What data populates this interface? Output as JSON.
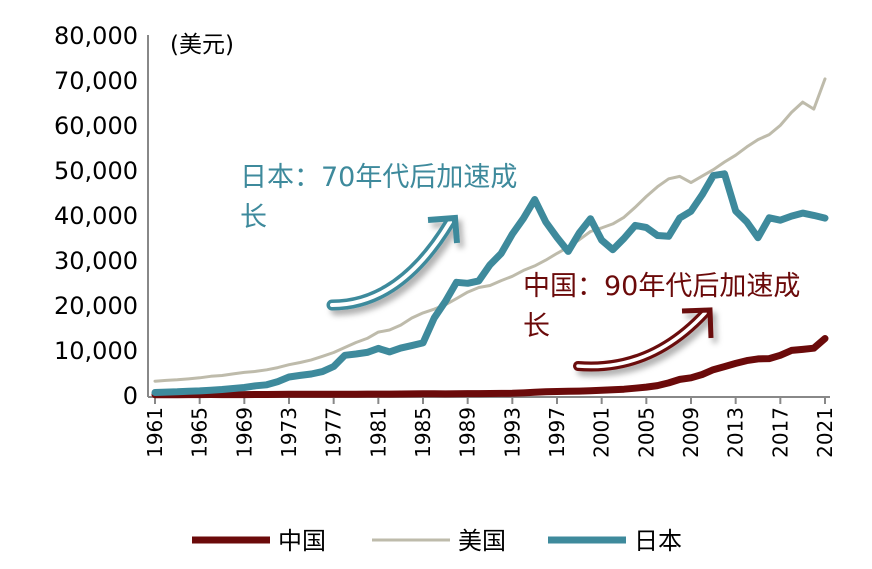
{
  "chart_data": {
    "type": "line",
    "title": "",
    "ylabel": "(美元)",
    "xlabel": "",
    "ylim": [
      0,
      80000
    ],
    "yticks": [
      "0",
      "10,000",
      "20,000",
      "30,000",
      "40,000",
      "50,000",
      "60,000",
      "70,000",
      "80,000"
    ],
    "xticks": [
      "1961",
      "1965",
      "1969",
      "1973",
      "1977",
      "1981",
      "1985",
      "1989",
      "1993",
      "1997",
      "2001",
      "2005",
      "2009",
      "2013",
      "2017",
      "2021"
    ],
    "grid": false,
    "legend": "bottom",
    "x": [
      1961,
      1962,
      1963,
      1964,
      1965,
      1966,
      1967,
      1968,
      1969,
      1970,
      1971,
      1972,
      1973,
      1974,
      1975,
      1976,
      1977,
      1978,
      1979,
      1980,
      1981,
      1982,
      1983,
      1984,
      1985,
      1986,
      1987,
      1988,
      1989,
      1990,
      1991,
      1992,
      1993,
      1994,
      1995,
      1996,
      1997,
      1998,
      1999,
      2000,
      2001,
      2002,
      2003,
      2004,
      2005,
      2006,
      2007,
      2008,
      2009,
      2010,
      2011,
      2012,
      2013,
      2014,
      2015,
      2016,
      2017,
      2018,
      2019,
      2020,
      2021
    ],
    "series": [
      {
        "name": "中国",
        "color": "#6b0a0a",
        "values": [
          76,
          70,
          74,
          85,
          98,
          104,
          97,
          91,
          100,
          113,
          119,
          132,
          157,
          160,
          178,
          165,
          185,
          156,
          184,
          195,
          197,
          203,
          225,
          251,
          294,
          282,
          252,
          284,
          311,
          318,
          333,
          366,
          377,
          473,
          610,
          709,
          782,
          829,
          873,
          959,
          1053,
          1149,
          1289,
          1509,
          1753,
          2099,
          2694,
          3468,
          3832,
          4550,
          5614,
          6301,
          7020,
          7636,
          8016,
          8094,
          8817,
          9905,
          10144,
          10409,
          12556
        ]
      },
      {
        "name": "美国",
        "color": "#bebbab",
        "values": [
          3066,
          3243,
          3374,
          3573,
          3828,
          4146,
          4336,
          4696,
          5032,
          5234,
          5609,
          6094,
          6726,
          7226,
          7801,
          8592,
          9453,
          10565,
          11674,
          12575,
          13976,
          14434,
          15544,
          17121,
          18237,
          19071,
          20039,
          21417,
          22857,
          23889,
          24342,
          25419,
          26387,
          27695,
          28691,
          29968,
          31459,
          32854,
          34515,
          36330,
          37134,
          38023,
          39496,
          41713,
          44115,
          46299,
          48050,
          48570,
          47195,
          48651,
          50066,
          51784,
          53291,
          55124,
          56763,
          57867,
          59915,
          62805,
          65095,
          63531,
          70249
        ]
      },
      {
        "name": "日本",
        "color": "#3e8a9c",
        "values": [
          563,
          634,
          718,
          836,
          919,
          1059,
          1229,
          1450,
          1669,
          2037,
          2272,
          2967,
          3998,
          4354,
          4659,
          5198,
          6335,
          8821,
          9105,
          9463,
          10361,
          9578,
          10425,
          10984,
          11585,
          17112,
          20745,
          25052,
          24813,
          25359,
          28925,
          31465,
          35766,
          39269,
          43440,
          38437,
          35022,
          31903,
          36027,
          39169,
          34406,
          32289,
          34808,
          37689,
          37218,
          35434,
          35275,
          39339,
          40855,
          44508,
          48760,
          49145,
          40898,
          38475,
          34961,
          39375,
          38834,
          39751,
          40416,
          39918,
          39313
        ]
      }
    ],
    "annotations": [
      {
        "line1": "日本：70年代后加速成",
        "line2": "长",
        "color": "#3e8a9c"
      },
      {
        "line1": "中国：90年代后加速成",
        "line2": "长",
        "color": "#6b0a0a"
      }
    ]
  }
}
